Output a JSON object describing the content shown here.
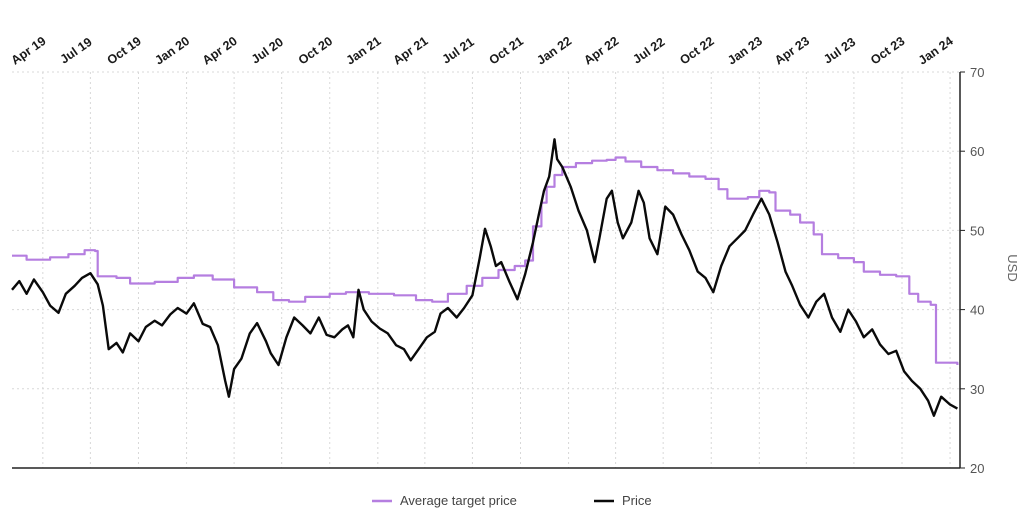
{
  "chart_data": {
    "type": "line",
    "title": "",
    "xlabel": "",
    "ylabel": "USD",
    "ylim": [
      20,
      70
    ],
    "yticks": [
      20,
      30,
      40,
      50,
      60,
      70
    ],
    "xlim": [
      "2019-02-01",
      "2024-01-20"
    ],
    "xticks": [
      {
        "label": "Apr 19",
        "date": "2019-04-01"
      },
      {
        "label": "Jul 19",
        "date": "2019-07-01"
      },
      {
        "label": "Oct 19",
        "date": "2019-10-01"
      },
      {
        "label": "Jan 20",
        "date": "2020-01-01"
      },
      {
        "label": "Apr 20",
        "date": "2020-04-01"
      },
      {
        "label": "Jul 20",
        "date": "2020-07-01"
      },
      {
        "label": "Oct 20",
        "date": "2020-10-01"
      },
      {
        "label": "Jan 21",
        "date": "2021-01-01"
      },
      {
        "label": "Apr 21",
        "date": "2021-04-01"
      },
      {
        "label": "Jul 21",
        "date": "2021-07-01"
      },
      {
        "label": "Oct 21",
        "date": "2021-10-01"
      },
      {
        "label": "Jan 22",
        "date": "2022-01-01"
      },
      {
        "label": "Apr 22",
        "date": "2022-04-01"
      },
      {
        "label": "Jul 22",
        "date": "2022-07-01"
      },
      {
        "label": "Oct 22",
        "date": "2022-10-01"
      },
      {
        "label": "Jan 23",
        "date": "2023-01-01"
      },
      {
        "label": "Apr 23",
        "date": "2023-04-01"
      },
      {
        "label": "Jul 23",
        "date": "2023-07-01"
      },
      {
        "label": "Oct 23",
        "date": "2023-10-01"
      },
      {
        "label": "Jan 24",
        "date": "2024-01-01"
      }
    ],
    "grid": true,
    "legend_position": "bottom-center",
    "y_axis_side": "right",
    "series": [
      {
        "name": "Average target price",
        "color": "#b57ee0",
        "step": true,
        "points": [
          [
            "2019-02-01",
            46.8
          ],
          [
            "2019-03-01",
            46.3
          ],
          [
            "2019-04-15",
            46.6
          ],
          [
            "2019-05-20",
            47.0
          ],
          [
            "2019-06-20",
            47.5
          ],
          [
            "2019-07-10",
            47.4
          ],
          [
            "2019-07-15",
            44.2
          ],
          [
            "2019-08-20",
            44.0
          ],
          [
            "2019-09-15",
            43.3
          ],
          [
            "2019-11-01",
            43.5
          ],
          [
            "2019-12-15",
            44.0
          ],
          [
            "2020-01-15",
            44.3
          ],
          [
            "2020-02-20",
            43.8
          ],
          [
            "2020-04-01",
            42.8
          ],
          [
            "2020-05-15",
            42.2
          ],
          [
            "2020-06-15",
            41.2
          ],
          [
            "2020-07-15",
            41.0
          ],
          [
            "2020-08-15",
            41.6
          ],
          [
            "2020-10-01",
            42.0
          ],
          [
            "2020-11-01",
            42.2
          ],
          [
            "2020-12-15",
            42.0
          ],
          [
            "2021-02-01",
            41.8
          ],
          [
            "2021-03-15",
            41.2
          ],
          [
            "2021-04-15",
            41.0
          ],
          [
            "2021-05-15",
            42.0
          ],
          [
            "2021-06-20",
            43.0
          ],
          [
            "2021-07-20",
            44.0
          ],
          [
            "2021-08-20",
            45.0
          ],
          [
            "2021-09-20",
            45.5
          ],
          [
            "2021-10-10",
            46.2
          ],
          [
            "2021-10-25",
            50.5
          ],
          [
            "2021-11-10",
            53.5
          ],
          [
            "2021-11-20",
            55.5
          ],
          [
            "2021-12-05",
            57.0
          ],
          [
            "2021-12-20",
            58.0
          ],
          [
            "2022-01-15",
            58.5
          ],
          [
            "2022-02-15",
            58.8
          ],
          [
            "2022-03-15",
            58.9
          ],
          [
            "2022-04-01",
            59.2
          ],
          [
            "2022-04-20",
            58.7
          ],
          [
            "2022-05-20",
            58.0
          ],
          [
            "2022-06-20",
            57.6
          ],
          [
            "2022-07-20",
            57.2
          ],
          [
            "2022-08-20",
            56.8
          ],
          [
            "2022-09-20",
            56.5
          ],
          [
            "2022-10-15",
            55.2
          ],
          [
            "2022-11-01",
            54.0
          ],
          [
            "2022-12-10",
            54.2
          ],
          [
            "2023-01-01",
            55.0
          ],
          [
            "2023-01-20",
            54.8
          ],
          [
            "2023-02-01",
            52.5
          ],
          [
            "2023-03-01",
            52.0
          ],
          [
            "2023-03-20",
            51.0
          ],
          [
            "2023-04-15",
            49.5
          ],
          [
            "2023-05-01",
            47.0
          ],
          [
            "2023-06-01",
            46.5
          ],
          [
            "2023-07-01",
            46.0
          ],
          [
            "2023-07-20",
            44.8
          ],
          [
            "2023-08-20",
            44.4
          ],
          [
            "2023-09-20",
            44.2
          ],
          [
            "2023-10-15",
            42.0
          ],
          [
            "2023-11-01",
            41.0
          ],
          [
            "2023-11-25",
            40.6
          ],
          [
            "2023-12-05",
            33.3
          ],
          [
            "2024-01-15",
            33.0
          ]
        ]
      },
      {
        "name": "Price",
        "color": "#0a0a0a",
        "step": false,
        "points": [
          [
            "2019-02-01",
            42.5
          ],
          [
            "2019-02-15",
            43.6
          ],
          [
            "2019-03-01",
            42.0
          ],
          [
            "2019-03-15",
            43.8
          ],
          [
            "2019-04-01",
            42.2
          ],
          [
            "2019-04-15",
            40.5
          ],
          [
            "2019-05-01",
            39.6
          ],
          [
            "2019-05-15",
            42.0
          ],
          [
            "2019-06-01",
            43.0
          ],
          [
            "2019-06-15",
            44.0
          ],
          [
            "2019-07-01",
            44.6
          ],
          [
            "2019-07-15",
            43.2
          ],
          [
            "2019-07-25",
            40.5
          ],
          [
            "2019-08-05",
            35.0
          ],
          [
            "2019-08-20",
            35.8
          ],
          [
            "2019-09-01",
            34.6
          ],
          [
            "2019-09-15",
            37.0
          ],
          [
            "2019-10-01",
            36.0
          ],
          [
            "2019-10-15",
            37.8
          ],
          [
            "2019-11-01",
            38.6
          ],
          [
            "2019-11-15",
            38.0
          ],
          [
            "2019-12-01",
            39.4
          ],
          [
            "2019-12-15",
            40.2
          ],
          [
            "2020-01-01",
            39.5
          ],
          [
            "2020-01-15",
            40.8
          ],
          [
            "2020-02-01",
            38.2
          ],
          [
            "2020-02-15",
            37.8
          ],
          [
            "2020-03-01",
            35.5
          ],
          [
            "2020-03-15",
            31.0
          ],
          [
            "2020-03-22",
            29.0
          ],
          [
            "2020-04-01",
            32.5
          ],
          [
            "2020-04-15",
            33.8
          ],
          [
            "2020-05-01",
            37.0
          ],
          [
            "2020-05-15",
            38.3
          ],
          [
            "2020-06-01",
            36.0
          ],
          [
            "2020-06-10",
            34.5
          ],
          [
            "2020-06-25",
            33.0
          ],
          [
            "2020-07-10",
            36.5
          ],
          [
            "2020-07-25",
            39.0
          ],
          [
            "2020-08-10",
            38.0
          ],
          [
            "2020-08-25",
            37.0
          ],
          [
            "2020-09-10",
            39.0
          ],
          [
            "2020-09-25",
            36.8
          ],
          [
            "2020-10-10",
            36.5
          ],
          [
            "2020-10-25",
            37.5
          ],
          [
            "2020-11-05",
            38.0
          ],
          [
            "2020-11-15",
            36.5
          ],
          [
            "2020-11-25",
            42.5
          ],
          [
            "2020-12-05",
            40.0
          ],
          [
            "2020-12-20",
            38.5
          ],
          [
            "2021-01-05",
            37.6
          ],
          [
            "2021-01-20",
            37.0
          ],
          [
            "2021-02-05",
            35.5
          ],
          [
            "2021-02-20",
            35.0
          ],
          [
            "2021-03-05",
            33.6
          ],
          [
            "2021-03-20",
            35.0
          ],
          [
            "2021-04-05",
            36.5
          ],
          [
            "2021-04-20",
            37.2
          ],
          [
            "2021-05-01",
            39.5
          ],
          [
            "2021-05-15",
            40.2
          ],
          [
            "2021-06-01",
            39.0
          ],
          [
            "2021-06-15",
            40.2
          ],
          [
            "2021-07-01",
            41.8
          ],
          [
            "2021-07-15",
            46.5
          ],
          [
            "2021-07-25",
            50.2
          ],
          [
            "2021-08-05",
            48.0
          ],
          [
            "2021-08-15",
            45.5
          ],
          [
            "2021-08-25",
            46.0
          ],
          [
            "2021-09-10",
            43.5
          ],
          [
            "2021-09-25",
            41.3
          ],
          [
            "2021-10-10",
            44.5
          ],
          [
            "2021-10-25",
            48.5
          ],
          [
            "2021-11-05",
            52.0
          ],
          [
            "2021-11-15",
            55.0
          ],
          [
            "2021-11-25",
            56.8
          ],
          [
            "2021-12-05",
            61.5
          ],
          [
            "2021-12-10",
            59.0
          ],
          [
            "2021-12-20",
            58.0
          ],
          [
            "2022-01-05",
            55.5
          ],
          [
            "2022-01-20",
            52.5
          ],
          [
            "2022-02-05",
            50.0
          ],
          [
            "2022-02-20",
            46.0
          ],
          [
            "2022-03-01",
            49.0
          ],
          [
            "2022-03-15",
            54.0
          ],
          [
            "2022-03-25",
            55.0
          ],
          [
            "2022-04-05",
            51.0
          ],
          [
            "2022-04-15",
            49.0
          ],
          [
            "2022-05-01",
            51.0
          ],
          [
            "2022-05-15",
            55.0
          ],
          [
            "2022-05-25",
            53.5
          ],
          [
            "2022-06-05",
            49.0
          ],
          [
            "2022-06-20",
            47.0
          ],
          [
            "2022-07-05",
            53.0
          ],
          [
            "2022-07-20",
            52.0
          ],
          [
            "2022-08-05",
            49.5
          ],
          [
            "2022-08-20",
            47.5
          ],
          [
            "2022-09-05",
            44.8
          ],
          [
            "2022-09-20",
            44.0
          ],
          [
            "2022-10-05",
            42.2
          ],
          [
            "2022-10-20",
            45.5
          ],
          [
            "2022-11-05",
            48.0
          ],
          [
            "2022-11-20",
            49.0
          ],
          [
            "2022-12-05",
            50.0
          ],
          [
            "2022-12-20",
            52.0
          ],
          [
            "2023-01-05",
            54.0
          ],
          [
            "2023-01-20",
            52.0
          ],
          [
            "2023-02-05",
            48.5
          ],
          [
            "2023-02-20",
            44.8
          ],
          [
            "2023-03-05",
            43.0
          ],
          [
            "2023-03-20",
            40.6
          ],
          [
            "2023-04-05",
            39.0
          ],
          [
            "2023-04-20",
            41.0
          ],
          [
            "2023-05-05",
            42.0
          ],
          [
            "2023-05-20",
            39.0
          ],
          [
            "2023-06-05",
            37.2
          ],
          [
            "2023-06-20",
            40.0
          ],
          [
            "2023-07-05",
            38.5
          ],
          [
            "2023-07-20",
            36.5
          ],
          [
            "2023-08-05",
            37.5
          ],
          [
            "2023-08-20",
            35.6
          ],
          [
            "2023-09-05",
            34.4
          ],
          [
            "2023-09-20",
            34.8
          ],
          [
            "2023-10-05",
            32.2
          ],
          [
            "2023-10-20",
            31.0
          ],
          [
            "2023-11-05",
            30.0
          ],
          [
            "2023-11-20",
            28.5
          ],
          [
            "2023-12-01",
            26.6
          ],
          [
            "2023-12-15",
            29.0
          ],
          [
            "2024-01-01",
            28.0
          ],
          [
            "2024-01-15",
            27.5
          ]
        ]
      }
    ],
    "legend": [
      {
        "label": "Average target price",
        "color": "#b57ee0"
      },
      {
        "label": "Price",
        "color": "#0a0a0a"
      }
    ]
  }
}
